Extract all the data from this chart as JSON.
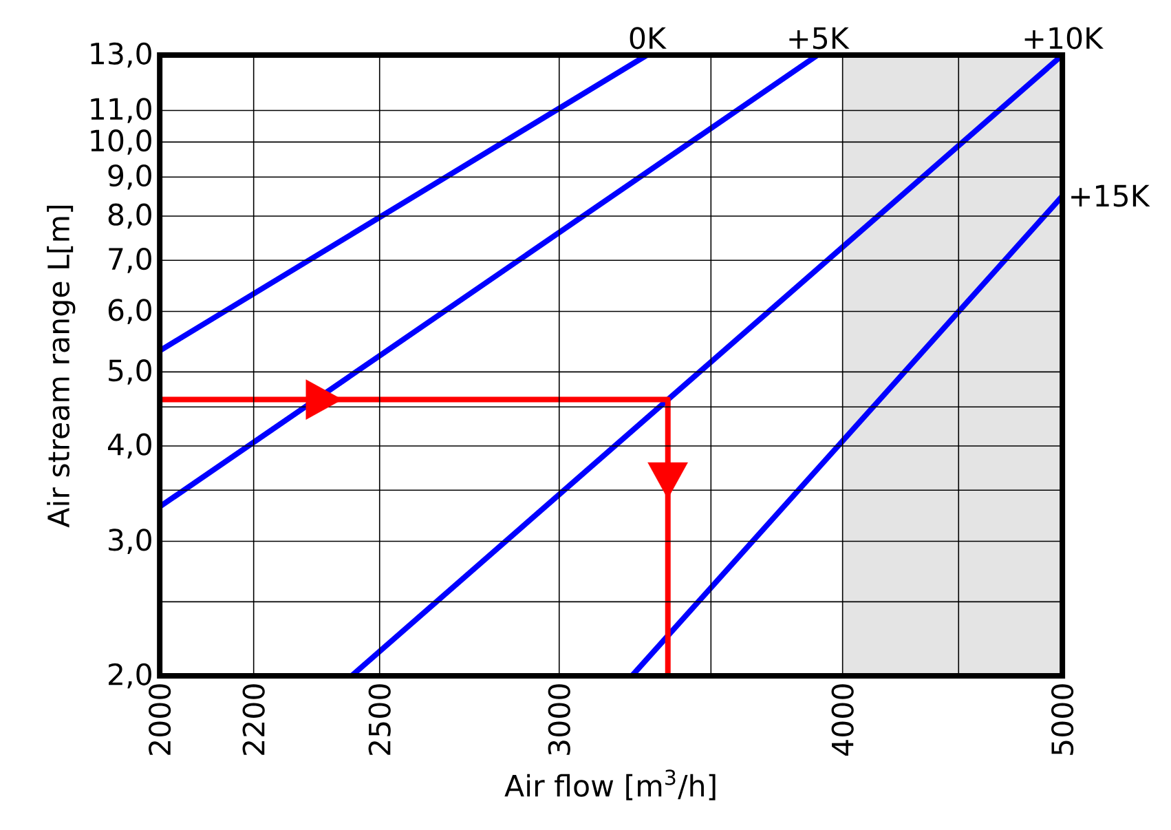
{
  "chart_data": {
    "type": "line",
    "xlabel": "Air flow [m$^{3}$/h]",
    "ylabel": "Air stream range L[m]",
    "log": "xy",
    "grid": true,
    "marker": "none",
    "xlim": [
      2000,
      5000
    ],
    "ylim": [
      2,
      13
    ],
    "xticks": [
      2000,
      2200,
      2500,
      3000,
      {
        "value": 3500,
        "label": null
      },
      4000,
      {
        "value": 4500,
        "label": null
      },
      5000
    ],
    "yticks": [
      {
        "value": 2,
        "label": "2,0"
      },
      {
        "value": 2.5,
        "label": null
      },
      {
        "value": 3,
        "label": "3,0"
      },
      {
        "value": 3.5,
        "label": null
      },
      {
        "value": 4,
        "label": "4,0"
      },
      {
        "value": 4.5,
        "label": null
      },
      {
        "value": 5,
        "label": "5,0"
      },
      {
        "value": 6,
        "label": "6,0"
      },
      {
        "value": 7,
        "label": "7,0"
      },
      {
        "value": 8,
        "label": "8,0"
      },
      {
        "value": 9,
        "label": "9,0"
      },
      {
        "value": 10,
        "label": "10,0"
      },
      {
        "value": 11,
        "label": "11,0"
      },
      {
        "value": 13,
        "label": "13,0"
      }
    ],
    "bands": [
      {
        "axis": "x",
        "from": 4000,
        "to": 5000,
        "color": "#e4e4e4"
      }
    ],
    "series": [
      {
        "name": "0K",
        "color": "#0000ff",
        "x": [
          2000,
          3280
        ],
        "values": [
          5.33,
          13
        ]
      },
      {
        "name": "+5K",
        "color": "#0000ff",
        "x": [
          2000,
          3900
        ],
        "values": [
          3.33,
          13
        ]
      },
      {
        "name": "+10K",
        "color": "#0000ff",
        "x": [
          2430,
          5000
        ],
        "values": [
          2,
          13
        ]
      },
      {
        "name": "+15K",
        "color": "#0000ff",
        "x": [
          3230,
          5000
        ],
        "values": [
          2,
          8.5
        ]
      },
      {
        "color": "#ff0000",
        "x": [
          2000,
          3350,
          3350
        ],
        "values": [
          4.6,
          4.6,
          2
        ]
      }
    ]
  }
}
